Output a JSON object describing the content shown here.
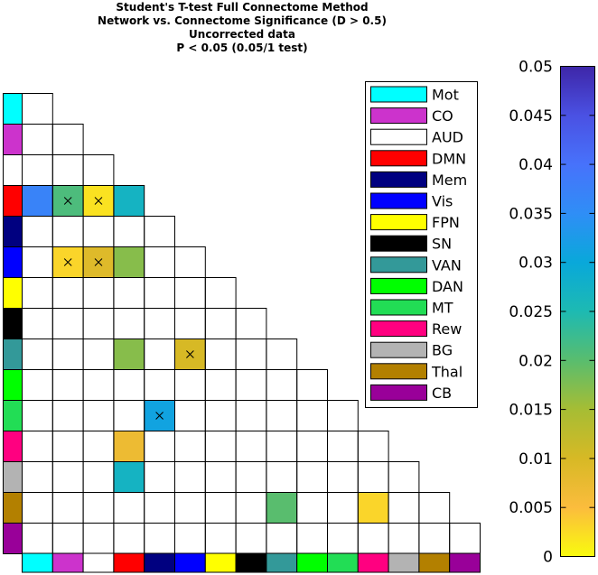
{
  "chart_data": {
    "type": "heatmap",
    "title": [
      "Student's T-test Full Connectome Method",
      "Network vs. Connectome Significance (D > 0.5)",
      "Uncorrected data",
      "P < 0.05 (0.05/1 test)"
    ],
    "networks": [
      {
        "name": "Mot",
        "color": "#00ffff"
      },
      {
        "name": "CO",
        "color": "#cc33cc"
      },
      {
        "name": "AUD",
        "color": "#ffffff"
      },
      {
        "name": "DMN",
        "color": "#ff0000"
      },
      {
        "name": "Mem",
        "color": "#000080"
      },
      {
        "name": "Vis",
        "color": "#0000ff"
      },
      {
        "name": "FPN",
        "color": "#ffff00"
      },
      {
        "name": "SN",
        "color": "#000000"
      },
      {
        "name": "VAN",
        "color": "#339999"
      },
      {
        "name": "DAN",
        "color": "#00ff00"
      },
      {
        "name": "MT",
        "color": "#22dd55"
      },
      {
        "name": "Rew",
        "color": "#ff0080"
      },
      {
        "name": "BG",
        "color": "#b3b3b3"
      },
      {
        "name": "Thal",
        "color": "#b38000"
      },
      {
        "name": "CB",
        "color": "#990099"
      }
    ],
    "cells": [
      {
        "row": "DMN",
        "col": "Mot",
        "p": 0.037,
        "marked": false
      },
      {
        "row": "DMN",
        "col": "CO",
        "p": 0.021,
        "marked": true
      },
      {
        "row": "DMN",
        "col": "AUD",
        "p": 0.002,
        "marked": true
      },
      {
        "row": "DMN",
        "col": "DMN",
        "p": 0.027,
        "marked": false
      },
      {
        "row": "Vis",
        "col": "CO",
        "p": 0.003,
        "marked": true
      },
      {
        "row": "Vis",
        "col": "AUD",
        "p": 0.009,
        "marked": true
      },
      {
        "row": "Vis",
        "col": "DMN",
        "p": 0.017,
        "marked": false
      },
      {
        "row": "VAN",
        "col": "DMN",
        "p": 0.017,
        "marked": false
      },
      {
        "row": "VAN",
        "col": "Vis",
        "p": 0.01,
        "marked": true
      },
      {
        "row": "MT",
        "col": "Mem",
        "p": 0.031,
        "marked": true
      },
      {
        "row": "Rew",
        "col": "DMN",
        "p": 0.007,
        "marked": false
      },
      {
        "row": "BG",
        "col": "DMN",
        "p": 0.027,
        "marked": false
      },
      {
        "row": "Thal",
        "col": "VAN",
        "p": 0.02,
        "marked": false
      },
      {
        "row": "Thal",
        "col": "Rew",
        "p": 0.003,
        "marked": false
      }
    ],
    "colorbar": {
      "range": [
        0,
        0.05
      ],
      "ticks": [
        "0",
        "0.005",
        "0.01",
        "0.015",
        "0.02",
        "0.025",
        "0.03",
        "0.035",
        "0.04",
        "0.045",
        "0.05"
      ],
      "colormap": [
        "#f9fb0e",
        "#fbbc3d",
        "#d7b925",
        "#a6bd34",
        "#59bd6e",
        "#1dbab2",
        "#09a8da",
        "#2f8ef6",
        "#4772fb",
        "#4a51e3",
        "#3e26a8"
      ]
    },
    "legend_placement": "inside-right"
  }
}
